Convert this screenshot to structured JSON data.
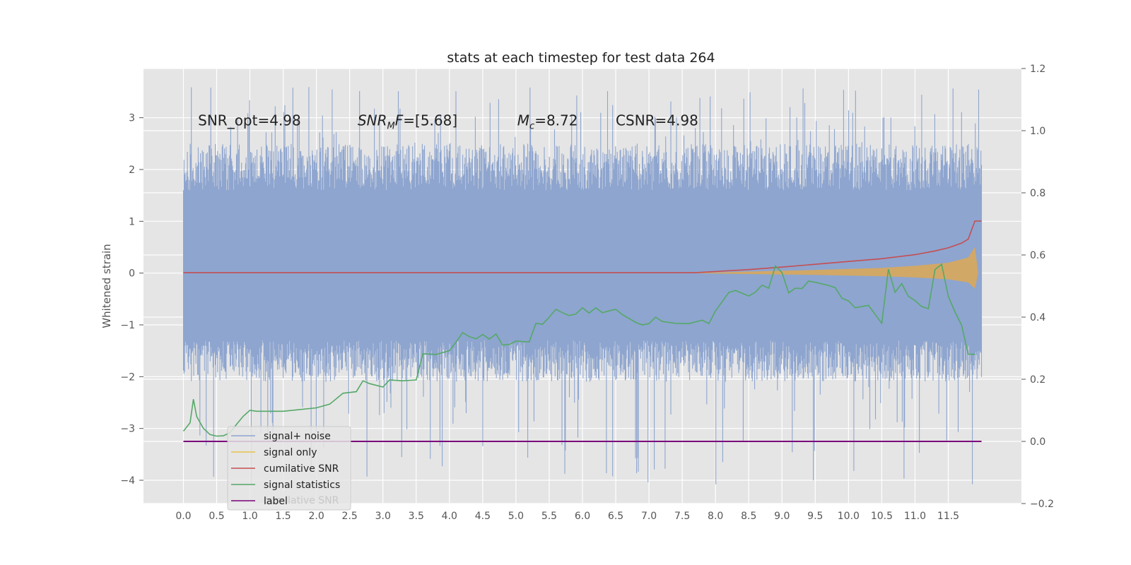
{
  "chart_data": {
    "type": "line",
    "title": "stats at each timestep for test data 264",
    "ylabel": "Whitened strain",
    "xlim": [
      -0.6,
      12.6
    ],
    "ylim": [
      -4.45,
      3.95
    ],
    "y2lim": [
      -0.2,
      1.2
    ],
    "grid": true,
    "legend_position": "lower-left",
    "x_ticks": [
      "0.0",
      "0.5",
      "1.0",
      "1.5",
      "2.0",
      "2.5",
      "3.0",
      "3.5",
      "4.0",
      "4.5",
      "5.0",
      "5.5",
      "6.0",
      "6.5",
      "7.0",
      "7.5",
      "8.0",
      "8.5",
      "9.0",
      "9.5",
      "10.0",
      "10.5",
      "11.0",
      "11.5"
    ],
    "y_ticks": [
      "3",
      "2",
      "1",
      "0",
      "−1",
      "−2",
      "−3",
      "−4"
    ],
    "y2_ticks": [
      "1.2",
      "1.0",
      "0.8",
      "0.6",
      "0.4",
      "0.2",
      "0.0",
      "−0.2"
    ],
    "annotations": [
      {
        "text": "SNR_opt=4.98",
        "x": 0.22,
        "y": 2.85
      },
      {
        "text": "SNR_MF=[5.68]",
        "x": 2.62,
        "y": 2.85
      },
      {
        "text": "M_c=8.72",
        "x": 5.02,
        "y": 2.85
      },
      {
        "text": "CSNR=4.98",
        "x": 6.5,
        "y": 2.85
      }
    ],
    "noise_band": {
      "x_start": 0.0,
      "x_end": 12.0,
      "typical_low": -1.6,
      "typical_high": 1.7,
      "peak_high": 3.6,
      "peak_low": -4.1
    },
    "series": [
      {
        "name": "signal+ noise",
        "color": "#8ea5cf",
        "axis": "left"
      },
      {
        "name": "signal only",
        "color": "#e8c34a",
        "axis": "left",
        "envelope": {
          "x": [
            7.6,
            8.5,
            9.5,
            10.5,
            11.0,
            11.5,
            11.8,
            11.9,
            11.95
          ],
          "amp": [
            0.0,
            0.03,
            0.06,
            0.1,
            0.14,
            0.2,
            0.3,
            0.5,
            0.0
          ]
        }
      },
      {
        "name": "cumilative SNR",
        "color": "#c44e52",
        "axis": "right",
        "x": [
          0.0,
          7.7,
          8.5,
          9.0,
          9.5,
          10.0,
          10.5,
          11.0,
          11.3,
          11.5,
          11.7,
          11.8,
          11.9,
          12.0
        ],
        "y": [
          0.543,
          0.543,
          0.553,
          0.561,
          0.57,
          0.579,
          0.588,
          0.601,
          0.613,
          0.623,
          0.638,
          0.651,
          0.709,
          0.709
        ]
      },
      {
        "name": "signal statistics",
        "color": "#55a868",
        "axis": "right",
        "x": [
          0.0,
          0.1,
          0.15,
          0.2,
          0.3,
          0.4,
          0.5,
          0.6,
          0.7,
          0.8,
          0.9,
          1.0,
          1.1,
          1.5,
          2.0,
          2.2,
          2.4,
          2.6,
          2.7,
          2.8,
          3.0,
          3.1,
          3.3,
          3.5,
          3.6,
          3.8,
          4.0,
          4.1,
          4.2,
          4.3,
          4.4,
          4.5,
          4.6,
          4.7,
          4.8,
          4.9,
          5.0,
          5.2,
          5.3,
          5.4,
          5.5,
          5.6,
          5.7,
          5.8,
          5.9,
          6.0,
          6.1,
          6.2,
          6.3,
          6.4,
          6.5,
          6.6,
          6.8,
          6.9,
          7.0,
          7.1,
          7.2,
          7.4,
          7.6,
          7.8,
          7.9,
          8.0,
          8.2,
          8.3,
          8.5,
          8.6,
          8.7,
          8.8,
          8.9,
          9.0,
          9.1,
          9.2,
          9.3,
          9.4,
          9.5,
          9.7,
          9.8,
          9.9,
          10.0,
          10.1,
          10.3,
          10.5,
          10.6,
          10.7,
          10.8,
          10.9,
          11.0,
          11.1,
          11.2,
          11.3,
          11.4,
          11.5,
          11.6,
          11.7,
          11.8,
          11.9
        ],
        "y": [
          0.033,
          0.06,
          0.136,
          0.08,
          0.042,
          0.022,
          0.017,
          0.018,
          0.028,
          0.055,
          0.081,
          0.1,
          0.097,
          0.097,
          0.108,
          0.12,
          0.155,
          0.16,
          0.195,
          0.186,
          0.175,
          0.198,
          0.195,
          0.198,
          0.282,
          0.28,
          0.292,
          0.32,
          0.35,
          0.337,
          0.33,
          0.344,
          0.329,
          0.346,
          0.31,
          0.312,
          0.323,
          0.32,
          0.38,
          0.377,
          0.4,
          0.425,
          0.414,
          0.405,
          0.41,
          0.43,
          0.413,
          0.43,
          0.414,
          0.42,
          0.425,
          0.408,
          0.383,
          0.375,
          0.379,
          0.4,
          0.386,
          0.38,
          0.379,
          0.39,
          0.379,
          0.42,
          0.479,
          0.486,
          0.468,
          0.48,
          0.503,
          0.493,
          0.565,
          0.543,
          0.478,
          0.493,
          0.492,
          0.516,
          0.512,
          0.502,
          0.495,
          0.461,
          0.452,
          0.43,
          0.438,
          0.38,
          0.554,
          0.48,
          0.508,
          0.467,
          0.453,
          0.434,
          0.427,
          0.553,
          0.57,
          0.467,
          0.417,
          0.374,
          0.281,
          0.28
        ]
      },
      {
        "name": "label",
        "color": "#7b007b",
        "axis": "right",
        "x": [
          0.0,
          12.0
        ],
        "y": [
          0.0,
          0.0
        ]
      }
    ],
    "legend_overlap_text": "cumilative SNR"
  }
}
